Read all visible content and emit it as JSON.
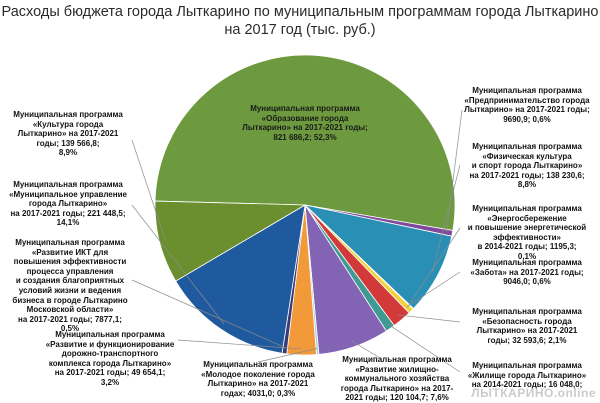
{
  "title_line1": "Расходы бюджета города Лыткарино по муниципальным программам города Лыткарино",
  "title_line2": "на 2017 год (тыс. руб.)",
  "watermark": "ЛЫТКАРИНО.online",
  "chart_data": {
    "type": "pie",
    "title": "Расходы бюджета города Лыткарино по муниципальным программам города Лыткарино на 2017 год (тыс. руб.)",
    "legend": "none",
    "slices": [
      {
        "key": "education",
        "label": "Муниципальная программа\n«Образование города\nЛыткарино» на 2017-2021 годы;\n821 686,2; 52,3%",
        "value": 821686.2,
        "percent": 52.3,
        "color": "#6d9a3e"
      },
      {
        "key": "business",
        "label": "Муниципальная программа\n«Предпринимательство города\nЛыткарино» на 2017-2021 годы;\n9690,9; 0,6%",
        "value": 9690.9,
        "percent": 0.6,
        "color": "#7f4a9c"
      },
      {
        "key": "sport",
        "label": "Муниципальная программа\n«Физическая культура\nи спорт города Лыткарино»\nна 2017-2021 годы; 138 230,6;\n8,8%",
        "value": 138230.6,
        "percent": 8.8,
        "color": "#2a8fb4"
      },
      {
        "key": "energy",
        "label": "Муниципальная программа\n«Энергосбережение\nи повышение энергетической\nэффективности»\nв 2014-2021 годы; 1195,3;\n0,1%",
        "value": 1195.3,
        "percent": 0.1,
        "color": "#e0e0e0"
      },
      {
        "key": "care",
        "label": "Муниципальная программа\n«Забота» на 2017-2021 годы;\n9046,0; 0,6%",
        "value": 9046.0,
        "percent": 0.6,
        "color": "#f2d13b"
      },
      {
        "key": "safety",
        "label": "Муниципальная программа\n«Безопасность города\nЛыткарино» на 2017-2021\nгоды; 32 593,6; 2,1%",
        "value": 32593.6,
        "percent": 2.1,
        "color": "#d23a3a"
      },
      {
        "key": "housing",
        "label": "Муниципальная программа\n«Жилище города Лыткарино»\nна 2014-2021 годы; 16 048,0;",
        "value": 16048.0,
        "percent": 1.0,
        "color": "#3f9a93"
      },
      {
        "key": "communal",
        "label": "Муниципальная программа\n«Развитие жилищно-\nкоммунального хозяйства\nгорода Лыткарино» на 2017-\n2021 годы; 120 104,7; 7,6%",
        "value": 120104.7,
        "percent": 7.6,
        "color": "#8363b4"
      },
      {
        "key": "youth",
        "label": "Муниципальная программа\n«Молодое поколение города\nЛыткарино» на 2017-2021\nгодах; 4031,0; 0,3%",
        "value": 4031.0,
        "percent": 0.3,
        "color": "#aad0ea"
      },
      {
        "key": "roads",
        "label": "Муниципальная программа\n«Развитие и функционирование\nдорожно-транспортного\nкомплекса города Лыткарино»\nна 2017-2021 годы; 49 654,1;\n3,2%",
        "value": 49654.1,
        "percent": 3.2,
        "color": "#f29a3a"
      },
      {
        "key": "ikt",
        "label": "Муниципальная программа\n«Развитие ИКТ для\nповышения эффективности\nпроцесса управления\nи создания благоприятных\nусловий жизни и ведения\nбизнеса в городе Лыткарино\nМосковской области»\nна 2017-2021 годы; 7877,1;\n0,5%",
        "value": 7877.1,
        "percent": 0.5,
        "color": "#3a3a7a"
      },
      {
        "key": "admin",
        "label": "Муниципальная программа\n«Муниципальное управление\nгорода Лыткарино»\nна 2017-2021 годы; 221 448,5;\n14,1%",
        "value": 221448.5,
        "percent": 14.1,
        "color": "#1f5a9e"
      },
      {
        "key": "culture",
        "label": "Муниципальная программа\n«Культура города\nЛыткарино» на 2017-2021\nгоды; 139 566,8;\n8,9%",
        "value": 139566.8,
        "percent": 8.9,
        "color": "#6b8e2f"
      }
    ]
  }
}
